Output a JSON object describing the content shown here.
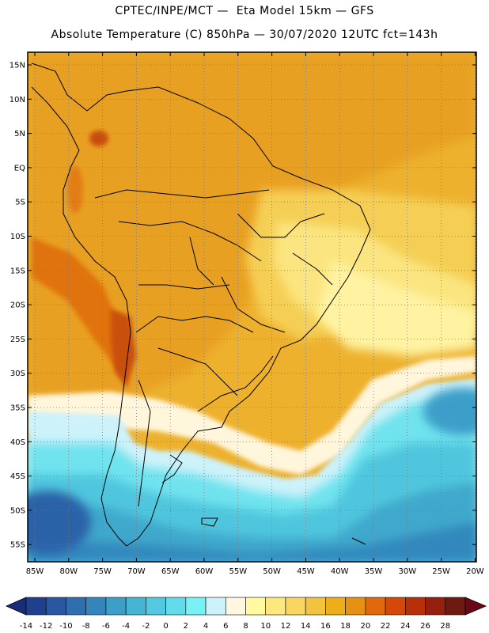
{
  "header": {
    "title_line1": "CPTEC/INPE/MCT —  Eta Model 15km — GFS",
    "title_line2": "Absolute Temperature (C) 850hPa — 30/07/2020 12UTC fct=143h"
  },
  "map": {
    "lat_labels": [
      "15N",
      "10N",
      "5N",
      "EQ",
      "5S",
      "10S",
      "15S",
      "20S",
      "25S",
      "30S",
      "35S",
      "40S",
      "45S",
      "50S",
      "55S"
    ],
    "lon_labels": [
      "85W",
      "80W",
      "75W",
      "70W",
      "65W",
      "60W",
      "55W",
      "50W",
      "45W",
      "40W",
      "35W",
      "30W",
      "25W",
      "20W"
    ],
    "grid": "dotted"
  },
  "colorbar": {
    "tick_labels": [
      "-14",
      "-12",
      "-10",
      "-8",
      "-6",
      "-4",
      "-2",
      "0",
      "2",
      "4",
      "6",
      "8",
      "10",
      "12",
      "14",
      "16",
      "18",
      "20",
      "22",
      "24",
      "26",
      "28"
    ],
    "colors": [
      "#1f3f8f",
      "#2a57a0",
      "#2f6fb0",
      "#3585bd",
      "#3d9ec8",
      "#45b5d4",
      "#52c9e0",
      "#62dcea",
      "#78f0f4",
      "#ccf3fb",
      "#fff7e0",
      "#fffaa0",
      "#fde77f",
      "#f8d660",
      "#f2c33e",
      "#edae1a",
      "#e79112",
      "#e06a0b",
      "#d4480a",
      "#b8300a",
      "#95200d",
      "#6f1a10"
    ],
    "left_extend_color": "#172d7a",
    "right_extend_color": "#6a0818"
  }
}
